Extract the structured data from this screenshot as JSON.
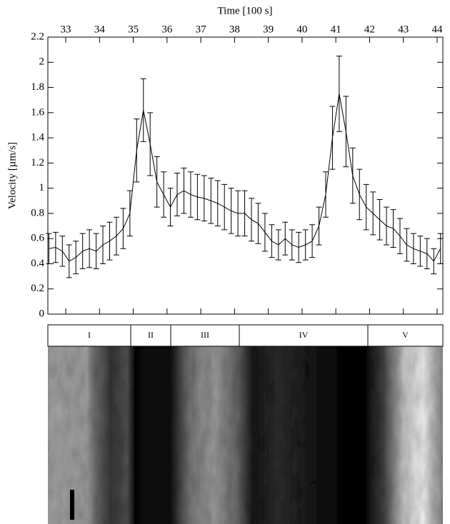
{
  "chart_data": {
    "type": "line",
    "xlabel": "Time [100 s]",
    "ylabel": "Velocity [µm/s]",
    "xlim": [
      32.47,
      44.17
    ],
    "ylim": [
      0,
      2.2
    ],
    "xticks": [
      33,
      34,
      35,
      36,
      37,
      38,
      39,
      40,
      41,
      42,
      43,
      44
    ],
    "yticks": [
      0,
      0.2,
      0.4,
      0.6,
      0.8,
      1,
      1.2,
      1.4,
      1.6,
      1.8,
      2,
      2.2
    ],
    "color": "#000000",
    "x": [
      32.5,
      32.7,
      32.9,
      33.1,
      33.3,
      33.5,
      33.7,
      33.9,
      34.1,
      34.3,
      34.5,
      34.7,
      34.9,
      35.1,
      35.3,
      35.5,
      35.7,
      35.9,
      36.1,
      36.3,
      36.5,
      36.7,
      36.9,
      37.1,
      37.3,
      37.5,
      37.7,
      37.9,
      38.1,
      38.3,
      38.5,
      38.7,
      38.9,
      39.1,
      39.3,
      39.5,
      39.7,
      39.9,
      40.1,
      40.3,
      40.5,
      40.7,
      40.9,
      41.1,
      41.3,
      41.5,
      41.7,
      41.9,
      42.1,
      42.3,
      42.5,
      42.7,
      42.9,
      43.1,
      43.3,
      43.5,
      43.7,
      43.9,
      44.1
    ],
    "values": [
      0.52,
      0.53,
      0.5,
      0.42,
      0.45,
      0.5,
      0.52,
      0.5,
      0.55,
      0.58,
      0.62,
      0.68,
      0.8,
      1.3,
      1.62,
      1.35,
      1.05,
      0.95,
      0.85,
      0.95,
      0.98,
      0.95,
      0.93,
      0.92,
      0.9,
      0.88,
      0.85,
      0.82,
      0.8,
      0.8,
      0.75,
      0.72,
      0.65,
      0.58,
      0.55,
      0.6,
      0.55,
      0.53,
      0.55,
      0.58,
      0.7,
      0.95,
      1.4,
      1.75,
      1.45,
      1.1,
      0.95,
      0.85,
      0.8,
      0.75,
      0.7,
      0.68,
      0.62,
      0.55,
      0.52,
      0.5,
      0.48,
      0.42,
      0.52
    ],
    "errors": [
      0.12,
      0.12,
      0.12,
      0.13,
      0.13,
      0.14,
      0.15,
      0.14,
      0.15,
      0.15,
      0.15,
      0.16,
      0.18,
      0.25,
      0.25,
      0.25,
      0.2,
      0.18,
      0.15,
      0.17,
      0.18,
      0.18,
      0.18,
      0.18,
      0.18,
      0.18,
      0.18,
      0.18,
      0.18,
      0.18,
      0.17,
      0.16,
      0.15,
      0.13,
      0.12,
      0.13,
      0.12,
      0.12,
      0.12,
      0.13,
      0.15,
      0.18,
      0.25,
      0.3,
      0.28,
      0.22,
      0.2,
      0.18,
      0.17,
      0.16,
      0.15,
      0.15,
      0.14,
      0.13,
      0.12,
      0.12,
      0.12,
      0.1,
      0.12
    ],
    "bands": [
      "I",
      "II",
      "III",
      "IV",
      "V"
    ]
  }
}
